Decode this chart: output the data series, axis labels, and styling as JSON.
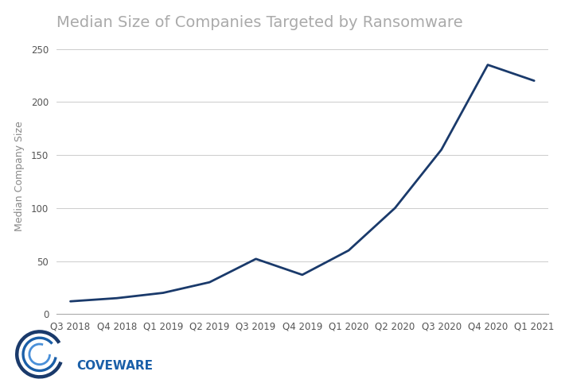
{
  "title": "Median Size of Companies Targeted by Ransomware",
  "xlabel": "",
  "ylabel": "Median Company Size",
  "categories": [
    "Q3 2018",
    "Q4 2018",
    "Q1 2019",
    "Q2 2019",
    "Q3 2019",
    "Q4 2019",
    "Q1 2020",
    "Q2 2020",
    "Q3 2020",
    "Q4 2020",
    "Q1 2021"
  ],
  "values": [
    12,
    15,
    20,
    30,
    52,
    37,
    60,
    100,
    155,
    235,
    220
  ],
  "line_color": "#1a3a6b",
  "line_width": 2.0,
  "ylim": [
    0,
    260
  ],
  "yticks": [
    0,
    50,
    100,
    150,
    200,
    250
  ],
  "background_color": "#ffffff",
  "grid_color": "#cccccc",
  "title_fontsize": 14,
  "title_color": "#aaaaaa",
  "axis_label_fontsize": 9,
  "axis_label_color": "#888888",
  "tick_fontsize": 8.5,
  "tick_color": "#555555",
  "coveware_text_color": "#1a5fa8",
  "coveware_text": "COVEWARE",
  "logo_dark": "#1a3a6b",
  "logo_mid": "#1a5fa8",
  "logo_light": "#4a90d9"
}
